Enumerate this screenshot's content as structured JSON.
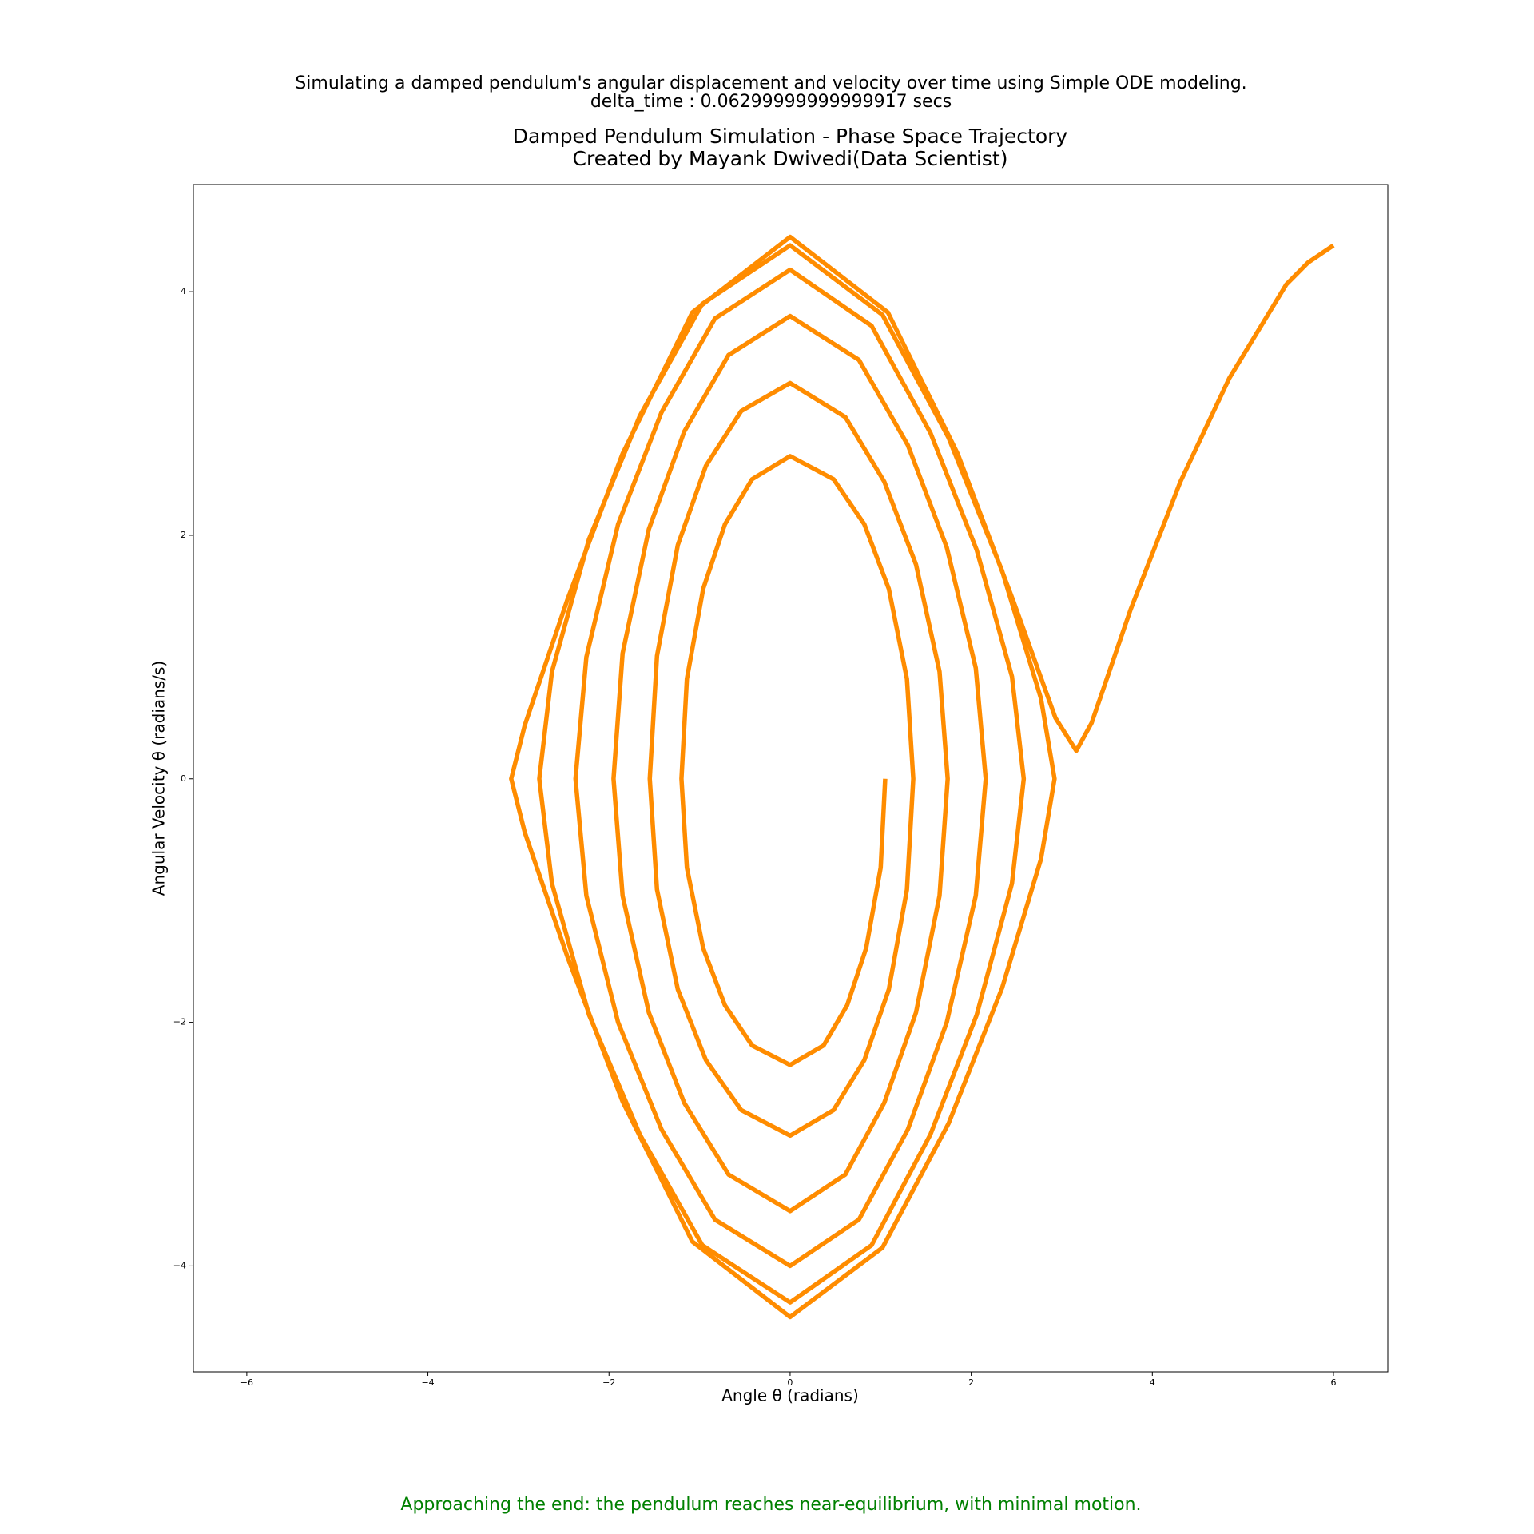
{
  "chart_data": {
    "type": "line",
    "suptitle": [
      "Simulating a damped pendulum's angular displacement and velocity over time using Simple ODE modeling.",
      "delta_time : 0.06299999999999917 secs"
    ],
    "title": [
      "Damped Pendulum Simulation - Phase Space Trajectory",
      "Created by Mayank Dwivedi(Data Scientist)"
    ],
    "xlabel": "Angle θ (radians)",
    "ylabel": "Angular Velocity θ (radians/s)",
    "annotation": "Approaching the end: the pendulum reaches near-equilibrium, with minimal motion.",
    "annotation_color": "#008000",
    "color": "#ff8c00",
    "xlim": [
      -6.59,
      6.6
    ],
    "ylim": [
      -4.87,
      4.88
    ],
    "xticks": [
      {
        "value": -6,
        "label": "−6"
      },
      {
        "value": -4,
        "label": "−4"
      },
      {
        "value": -2,
        "label": "−2"
      },
      0,
      2,
      4,
      6
    ],
    "yticks": [
      {
        "value": -4,
        "label": "−4"
      },
      {
        "value": -2,
        "label": "−2"
      },
      0,
      2,
      4
    ],
    "x": [
      1.05,
      1.0,
      0.84,
      0.63,
      0.37,
      0,
      -0.42,
      -0.72,
      -0.96,
      -1.14,
      -1.2,
      -1.14,
      -0.96,
      -0.72,
      -0.42,
      0,
      0.48,
      0.82,
      1.09,
      1.29,
      1.36,
      1.29,
      1.09,
      0.82,
      0.48,
      0,
      -0.54,
      -0.93,
      -1.24,
      -1.47,
      -1.55,
      -1.47,
      -1.24,
      -0.93,
      -0.54,
      0,
      0.61,
      1.04,
      1.39,
      1.65,
      1.74,
      1.65,
      1.39,
      1.04,
      0.61,
      0,
      -0.68,
      -1.17,
      -1.56,
      -1.85,
      -1.95,
      -1.85,
      -1.56,
      -1.17,
      -0.68,
      0,
      0.76,
      1.3,
      1.73,
      2.05,
      2.16,
      2.05,
      1.73,
      1.3,
      0.76,
      0,
      -0.83,
      -1.42,
      -1.9,
      -2.25,
      -2.37,
      -2.25,
      -1.9,
      -1.42,
      -0.83,
      0,
      0.9,
      1.55,
      2.06,
      2.45,
      2.58,
      2.45,
      2.06,
      1.55,
      0.9,
      0,
      -0.97,
      -1.66,
      -2.22,
      -2.63,
      -2.77,
      -2.63,
      -2.22,
      -1.66,
      -0.97,
      0,
      1.02,
      1.75,
      2.34,
      2.77,
      2.92,
      2.77,
      2.34,
      1.75,
      1.02,
      0,
      -1.08,
      -1.85,
      -2.46,
      -2.93,
      -3.08,
      -2.93,
      -2.46,
      -1.85,
      -1.08,
      0,
      1.08,
      1.85,
      2.46,
      2.93,
      3.16,
      3.33,
      3.76,
      4.31,
      4.85,
      5.48,
      5.72,
      6.0
    ],
    "values": [
      0,
      -0.73,
      -1.39,
      -1.86,
      -2.19,
      -2.35,
      -2.19,
      -1.86,
      -1.39,
      -0.73,
      0,
      0.82,
      1.56,
      2.09,
      2.46,
      2.65,
      2.46,
      2.09,
      1.56,
      0.82,
      0,
      -0.91,
      -1.73,
      -2.31,
      -2.72,
      -2.93,
      -2.72,
      -2.31,
      -1.73,
      -0.91,
      0,
      1.01,
      1.92,
      2.57,
      3.02,
      3.25,
      2.97,
      2.44,
      1.76,
      0.88,
      0,
      -0.96,
      -1.92,
      -2.66,
      -3.25,
      -3.55,
      -3.25,
      -2.66,
      -1.92,
      -0.96,
      0,
      1.03,
      2.05,
      2.85,
      3.48,
      3.8,
      3.44,
      2.74,
      1.9,
      0.91,
      0,
      -0.96,
      -2.0,
      -2.88,
      -3.62,
      -4.0,
      -3.62,
      -2.88,
      -2.0,
      -0.96,
      0,
      1.0,
      2.09,
      3.01,
      3.78,
      4.18,
      3.72,
      2.84,
      1.88,
      0.84,
      0,
      -0.86,
      -1.94,
      -2.92,
      -3.83,
      -4.3,
      -3.83,
      -2.92,
      -1.94,
      -0.86,
      0,
      0.88,
      1.97,
      2.98,
      3.9,
      4.38,
      3.81,
      2.8,
      1.71,
      0.66,
      0,
      -0.66,
      -1.72,
      -2.83,
      -3.85,
      -4.42,
      -3.8,
      -2.65,
      -1.46,
      -0.44,
      0,
      0.44,
      1.47,
      2.67,
      3.83,
      4.45,
      3.83,
      2.67,
      1.47,
      0.5,
      0.23,
      0.46,
      1.39,
      2.44,
      3.29,
      4.06,
      4.24,
      4.38
    ]
  }
}
